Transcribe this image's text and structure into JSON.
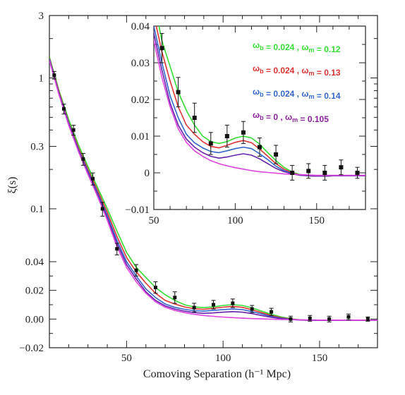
{
  "chart_data": [
    {
      "type": "line",
      "xlabel": "Comoving Separation (h⁻¹ Mpc)",
      "ylabel": "ξ(s)",
      "xlim": [
        10,
        180
      ],
      "ylim": [
        -0.02,
        3
      ],
      "yscale": "mixed (linear below 0.04, logarithmic above)",
      "x_ticks": [
        "50",
        "100",
        "150"
      ],
      "y_ticks": [
        "−0.02",
        "0.00",
        "0.02",
        "0.04",
        "0.1",
        "0.3",
        "1",
        "3"
      ],
      "colors": {
        "green": "#33dd33",
        "red": "#dd3333",
        "blue": "#3366cc",
        "purple": "#6622aa",
        "magenta": "#dd44dd"
      },
      "data_points": {
        "x": [
          12.5,
          17.5,
          22.5,
          27.5,
          32.5,
          37.5,
          45,
          55,
          65,
          75,
          85,
          95,
          105,
          115,
          125,
          135,
          145,
          155,
          165,
          175
        ],
        "y": [
          1.05,
          0.58,
          0.4,
          0.24,
          0.17,
          0.1,
          0.05,
          0.034,
          0.022,
          0.015,
          0.008,
          0.01,
          0.011,
          0.007,
          0.005,
          0.0,
          0.0005,
          0.0,
          0.0015,
          0.0
        ],
        "err": [
          0.07,
          0.05,
          0.035,
          0.025,
          0.018,
          0.012,
          0.005,
          0.004,
          0.004,
          0.004,
          0.003,
          0.003,
          0.003,
          0.0025,
          0.0025,
          0.002,
          0.002,
          0.002,
          0.002,
          0.0015
        ]
      },
      "series": [
        {
          "color": "green",
          "x": [
            10,
            15,
            20,
            25,
            30,
            35,
            40,
            45,
            50,
            55,
            60,
            65,
            70,
            75,
            80,
            85,
            90,
            95,
            100,
            105,
            110,
            115,
            120,
            125,
            130,
            135,
            140,
            145,
            150,
            155,
            160,
            165,
            170,
            175,
            180
          ],
          "y": [
            1.45,
            0.8,
            0.48,
            0.31,
            0.21,
            0.145,
            0.1,
            0.068,
            0.047,
            0.036,
            0.029,
            0.022,
            0.017,
            0.013,
            0.01,
            0.0085,
            0.008,
            0.0085,
            0.0095,
            0.01,
            0.0095,
            0.0078,
            0.0055,
            0.0033,
            0.0015,
            0.0002,
            -0.0005,
            -0.0008,
            -0.0009,
            -0.0009,
            -0.0008,
            -0.0008,
            -0.0008,
            -0.0008,
            -0.0008
          ]
        },
        {
          "color": "red",
          "x": [
            10,
            15,
            20,
            25,
            30,
            35,
            40,
            45,
            50,
            55,
            60,
            65,
            70,
            75,
            80,
            85,
            90,
            95,
            100,
            105,
            110,
            115,
            120,
            125,
            130,
            135,
            140,
            145,
            150,
            155,
            160,
            165,
            170,
            175,
            180
          ],
          "y": [
            1.42,
            0.78,
            0.46,
            0.295,
            0.2,
            0.138,
            0.094,
            0.062,
            0.043,
            0.033,
            0.025,
            0.018,
            0.013,
            0.0105,
            0.0085,
            0.0072,
            0.0068,
            0.0075,
            0.0083,
            0.0088,
            0.0082,
            0.0065,
            0.0045,
            0.0025,
            0.001,
            0.0,
            -0.0006,
            -0.0008,
            -0.0009,
            -0.0009,
            -0.0008,
            -0.0008,
            -0.0008,
            -0.0008,
            -0.0008
          ]
        },
        {
          "color": "blue",
          "x": [
            10,
            15,
            20,
            25,
            30,
            35,
            40,
            45,
            50,
            55,
            60,
            65,
            70,
            75,
            80,
            85,
            90,
            95,
            100,
            105,
            110,
            115,
            120,
            125,
            130,
            135,
            140,
            145,
            150,
            155,
            160,
            165,
            170,
            175,
            180
          ],
          "y": [
            1.4,
            0.76,
            0.45,
            0.285,
            0.193,
            0.132,
            0.089,
            0.058,
            0.04,
            0.03,
            0.021,
            0.015,
            0.0105,
            0.0082,
            0.0068,
            0.0058,
            0.0055,
            0.006,
            0.0066,
            0.007,
            0.0066,
            0.0052,
            0.0036,
            0.0018,
            0.0006,
            -0.0002,
            -0.0006,
            -0.0008,
            -0.0009,
            -0.0009,
            -0.0008,
            -0.0008,
            -0.0008,
            -0.0008,
            -0.0008
          ]
        },
        {
          "color": "purple",
          "x": [
            10,
            15,
            20,
            25,
            30,
            35,
            40,
            45,
            50,
            55,
            60,
            65,
            70,
            75,
            80,
            85,
            90,
            95,
            100,
            105,
            110,
            115,
            120,
            125,
            130,
            135,
            140,
            145,
            150,
            155,
            160,
            165,
            170,
            175,
            180
          ],
          "y": [
            1.38,
            0.75,
            0.44,
            0.28,
            0.188,
            0.128,
            0.085,
            0.055,
            0.038,
            0.028,
            0.019,
            0.013,
            0.0092,
            0.007,
            0.0055,
            0.0045,
            0.004,
            0.0043,
            0.0048,
            0.0052,
            0.0048,
            0.0038,
            0.0025,
            0.0012,
            0.0003,
            -0.0003,
            -0.0007,
            -0.0008,
            -0.0009,
            -0.0009,
            -0.0008,
            -0.0008,
            -0.0008,
            -0.0008,
            -0.0008
          ]
        },
        {
          "color": "magenta",
          "x": [
            10,
            15,
            20,
            25,
            30,
            35,
            40,
            45,
            50,
            55,
            60,
            65,
            70,
            75,
            80,
            85,
            90,
            95,
            100,
            105,
            110,
            115,
            120,
            125,
            130,
            135,
            140,
            145,
            150,
            155,
            160,
            165,
            170,
            175,
            180
          ],
          "y": [
            1.36,
            0.74,
            0.435,
            0.275,
            0.183,
            0.124,
            0.082,
            0.052,
            0.036,
            0.026,
            0.018,
            0.012,
            0.0083,
            0.006,
            0.0045,
            0.0033,
            0.0025,
            0.0019,
            0.0014,
            0.001,
            0.0006,
            0.0003,
            0.0001,
            -0.0001,
            -0.0003,
            -0.0004,
            -0.0005,
            -0.0006,
            -0.0007,
            -0.0007,
            -0.0007,
            -0.0007,
            -0.0007,
            -0.0007,
            -0.0007
          ]
        }
      ]
    },
    {
      "type": "line",
      "xlim": [
        50,
        180
      ],
      "ylim": [
        -0.01,
        0.04
      ],
      "x_ticks": [
        "50",
        "100",
        "150"
      ],
      "y_ticks": [
        "−0.01",
        "0",
        "0.01",
        "0.02",
        "0.03",
        "0.04"
      ],
      "legend_position": "top-right",
      "legend": [
        {
          "color": "green",
          "hex": "#33dd33",
          "text": "ωb = 0.024 ,  ωm = 0.12"
        },
        {
          "color": "red",
          "hex": "#dd3333",
          "text": "ωb = 0.024 ,  ωm = 0.13"
        },
        {
          "color": "blue",
          "hex": "#3366cc",
          "text": "ωb = 0.024 ,  ωm = 0.14"
        },
        {
          "color": "purple",
          "hex": "#882299",
          "text": "ωb = 0         ,  ωm = 0.105"
        }
      ]
    }
  ]
}
